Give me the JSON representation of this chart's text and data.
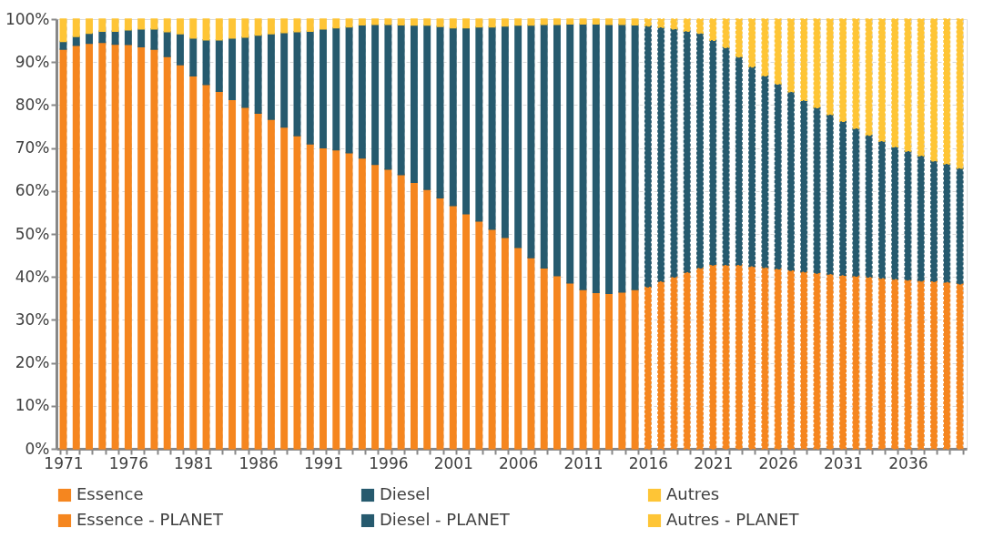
{
  "chart_data": {
    "type": "bar",
    "stacked": true,
    "categories": [
      "1971",
      null,
      null,
      null,
      null,
      "1976",
      null,
      null,
      null,
      null,
      "1981",
      null,
      null,
      null,
      null,
      "1986",
      null,
      null,
      null,
      null,
      "1991",
      null,
      null,
      null,
      null,
      "1996",
      null,
      null,
      null,
      null,
      "2001",
      null,
      null,
      null,
      null,
      "2006",
      null,
      null,
      null,
      null,
      "2011",
      null,
      null,
      null,
      null,
      "2016",
      null,
      null,
      null,
      null,
      "2021",
      null,
      null,
      null,
      null,
      "2026",
      null,
      null,
      null,
      null,
      "2031",
      null,
      null,
      null,
      null,
      "2036",
      null,
      null,
      null,
      null
    ],
    "series": [
      {
        "name": "Essence",
        "color": "#f5861f",
        "values": [
          93.0,
          93.9,
          94.4,
          94.6,
          94.2,
          94.1,
          93.6,
          93.0,
          91.3,
          89.4,
          86.8,
          84.8,
          83.2,
          81.3,
          79.5,
          78.1,
          76.7,
          74.9,
          72.9,
          71.0,
          70.1,
          69.6,
          68.9,
          67.7,
          66.2,
          65.1,
          63.8,
          62.0,
          60.4,
          58.4,
          56.6,
          54.7,
          53.0,
          51.1,
          49.2,
          46.9,
          44.5,
          42.1,
          40.3,
          38.6,
          37.1,
          36.4,
          36.2,
          36.5,
          37.1,
          null,
          null,
          null,
          null,
          null,
          null,
          null,
          null,
          null,
          null,
          null,
          null,
          null,
          null,
          null,
          null,
          null,
          null,
          null,
          null,
          null,
          null,
          null,
          null,
          null
        ]
      },
      {
        "name": "Diesel",
        "color": "#265a6e",
        "values": [
          1.8,
          2.1,
          2.3,
          2.6,
          3.0,
          3.4,
          4.1,
          4.7,
          5.8,
          7.2,
          8.8,
          10.4,
          12.0,
          14.3,
          16.3,
          18.2,
          19.9,
          22.0,
          24.2,
          26.2,
          27.6,
          28.4,
          29.3,
          31.0,
          32.6,
          33.7,
          34.9,
          36.6,
          38.2,
          39.9,
          41.4,
          43.3,
          45.2,
          47.1,
          49.2,
          51.7,
          54.1,
          56.7,
          58.5,
          60.3,
          61.8,
          62.5,
          62.6,
          62.3,
          61.6,
          null,
          null,
          null,
          null,
          null,
          null,
          null,
          null,
          null,
          null,
          null,
          null,
          null,
          null,
          null,
          null,
          null,
          null,
          null,
          null,
          null,
          null,
          null,
          null,
          null
        ]
      },
      {
        "name": "Autres",
        "color": "#fec536",
        "values": [
          5.2,
          4.0,
          3.3,
          2.8,
          2.8,
          2.5,
          2.3,
          2.3,
          2.9,
          3.4,
          4.4,
          4.8,
          4.8,
          4.4,
          4.2,
          3.7,
          3.4,
          3.1,
          2.9,
          2.8,
          2.3,
          2.0,
          1.8,
          1.3,
          1.2,
          1.2,
          1.3,
          1.4,
          1.4,
          1.7,
          2.0,
          2.0,
          1.8,
          1.8,
          1.6,
          1.4,
          1.4,
          1.2,
          1.2,
          1.1,
          1.1,
          1.1,
          1.2,
          1.2,
          1.3,
          null,
          null,
          null,
          null,
          null,
          null,
          null,
          null,
          null,
          null,
          null,
          null,
          null,
          null,
          null,
          null,
          null,
          null,
          null,
          null,
          null,
          null,
          null,
          null,
          null
        ]
      },
      {
        "name": "Essence - PLANET",
        "color": "#f5861f",
        "line_style": "dashed",
        "values": [
          null,
          null,
          null,
          null,
          null,
          null,
          null,
          null,
          null,
          null,
          null,
          null,
          null,
          null,
          null,
          null,
          null,
          null,
          null,
          null,
          null,
          null,
          null,
          null,
          null,
          null,
          null,
          null,
          null,
          null,
          null,
          null,
          null,
          null,
          null,
          null,
          null,
          null,
          null,
          null,
          null,
          null,
          null,
          null,
          null,
          37.7,
          39.0,
          40.0,
          41.1,
          42.1,
          42.8,
          42.8,
          42.8,
          42.5,
          42.2,
          41.9,
          41.5,
          41.2,
          40.9,
          40.7,
          40.4,
          40.2,
          40.0,
          39.7,
          39.5,
          39.3,
          39.1,
          39.0,
          38.8,
          38.4
        ]
      },
      {
        "name": "Diesel - PLANET",
        "color": "#265a6e",
        "line_style": "dashed",
        "values": [
          null,
          null,
          null,
          null,
          null,
          null,
          null,
          null,
          null,
          null,
          null,
          null,
          null,
          null,
          null,
          null,
          null,
          null,
          null,
          null,
          null,
          null,
          null,
          null,
          null,
          null,
          null,
          null,
          null,
          null,
          null,
          null,
          null,
          null,
          null,
          null,
          null,
          null,
          null,
          null,
          null,
          null,
          null,
          null,
          null,
          60.7,
          59.1,
          57.7,
          56.1,
          54.6,
          52.3,
          50.6,
          48.4,
          46.4,
          44.6,
          43.0,
          41.6,
          39.9,
          38.5,
          37.1,
          35.8,
          34.4,
          33.0,
          31.9,
          30.8,
          30.0,
          29.1,
          28.0,
          27.5,
          26.9
        ]
      },
      {
        "name": "Autres - PLANET",
        "color": "#fec536",
        "line_style": "dashed",
        "values": [
          null,
          null,
          null,
          null,
          null,
          null,
          null,
          null,
          null,
          null,
          null,
          null,
          null,
          null,
          null,
          null,
          null,
          null,
          null,
          null,
          null,
          null,
          null,
          null,
          null,
          null,
          null,
          null,
          null,
          null,
          null,
          null,
          null,
          null,
          null,
          null,
          null,
          null,
          null,
          null,
          null,
          null,
          null,
          null,
          null,
          1.6,
          1.9,
          2.3,
          2.8,
          3.3,
          4.9,
          6.6,
          8.8,
          11.1,
          13.2,
          15.1,
          16.9,
          18.9,
          20.6,
          22.2,
          23.8,
          25.4,
          27.0,
          28.4,
          29.7,
          30.7,
          31.8,
          33.0,
          33.7,
          34.7
        ]
      }
    ],
    "ylim": [
      0,
      100
    ],
    "yticks": [
      {
        "value": 0,
        "label": "0%"
      },
      {
        "value": 10,
        "label": "10%"
      },
      {
        "value": 20,
        "label": "20%"
      },
      {
        "value": 30,
        "label": "30%"
      },
      {
        "value": 40,
        "label": "40%"
      },
      {
        "value": 50,
        "label": "50%"
      },
      {
        "value": 60,
        "label": "60%"
      },
      {
        "value": 70,
        "label": "70%"
      },
      {
        "value": 80,
        "label": "80%"
      },
      {
        "value": 90,
        "label": "90%"
      },
      {
        "value": 100,
        "label": "100%"
      }
    ],
    "grid": true,
    "legend": "bottom"
  }
}
